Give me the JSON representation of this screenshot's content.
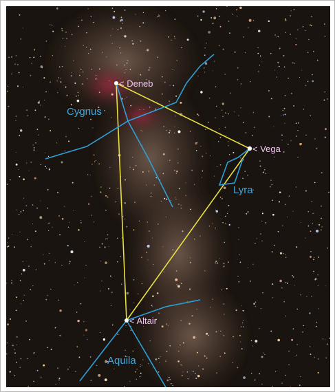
{
  "stars": {
    "deneb": "< Deneb",
    "vega": "< Vega",
    "altair": "< Altair"
  },
  "constellations": {
    "cygnus": "Cygnus",
    "lyra": "Lyra",
    "aquila": "Aquila"
  }
}
